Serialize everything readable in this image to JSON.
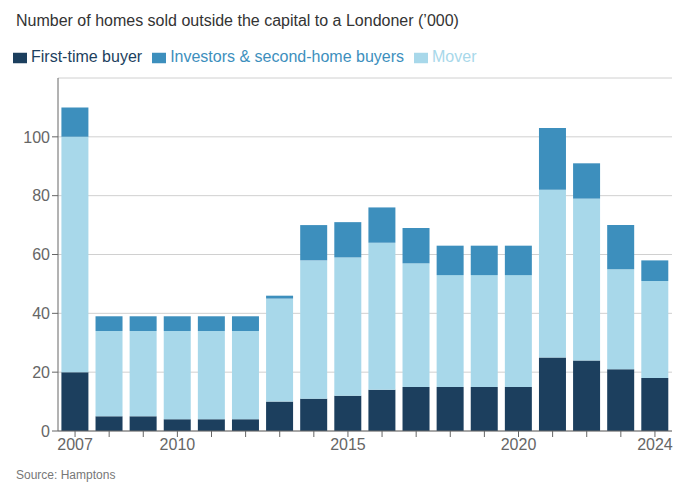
{
  "chart_data": {
    "type": "bar",
    "title": "Number of homes sold outside the capital to a Londoner (’000)",
    "source": "Source: Hamptons",
    "categories": [
      "2007",
      null,
      null,
      "2010",
      null,
      null,
      null,
      null,
      "2015",
      null,
      null,
      null,
      null,
      "2020",
      null,
      null,
      null,
      "2024"
    ],
    "series": [
      {
        "name": "First-time buyer",
        "color": "#1c3f5e",
        "values": [
          20,
          5,
          5,
          4,
          4,
          4,
          10,
          11,
          12,
          14,
          15,
          15,
          15,
          15,
          25,
          24,
          21,
          18
        ]
      },
      {
        "name": "Mover",
        "color": "#a8d8ea",
        "values": [
          80,
          29,
          29,
          30,
          30,
          30,
          35,
          47,
          47,
          50,
          42,
          38,
          38,
          38,
          57,
          55,
          34,
          33
        ]
      },
      {
        "name": "Investors & second-home buyers",
        "color": "#3d8fbd",
        "values": [
          10,
          5,
          5,
          5,
          5,
          5,
          1,
          12,
          12,
          12,
          12,
          10,
          10,
          10,
          21,
          12,
          15,
          7
        ]
      }
    ],
    "stacked": true,
    "ylim": [
      0,
      120
    ],
    "yticks": [
      0,
      20,
      40,
      60,
      80,
      100
    ],
    "grid": true,
    "legend": "top"
  }
}
